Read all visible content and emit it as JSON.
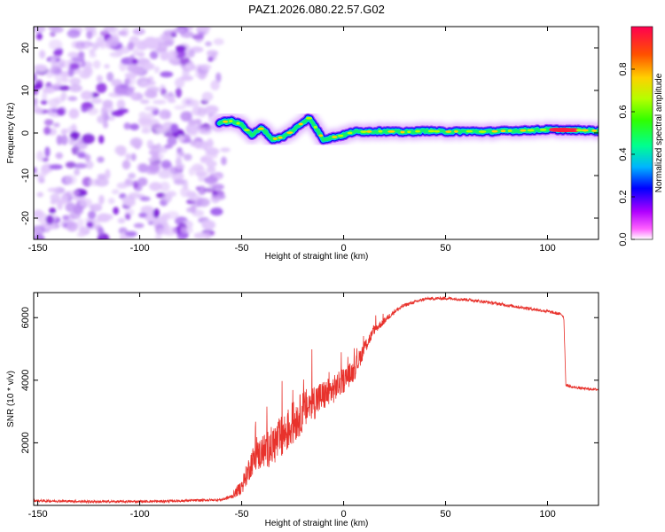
{
  "title": "PAZ1.2026.080.22.57.G02",
  "colors": {
    "snr_line": "#e8322c",
    "spectrogram_noise": "#8a2be2",
    "axis": "#000000"
  },
  "chart_data": [
    {
      "type": "heatmap",
      "name": "spectrogram",
      "xlabel": "Height of straight line (km)",
      "ylabel": "Frequency (Hz)",
      "xlim": [
        -152,
        125
      ],
      "ylim": [
        -25,
        25
      ],
      "xticks": [
        -150,
        -100,
        -50,
        0,
        50,
        100
      ],
      "yticks": [
        -20,
        -10,
        0,
        10,
        20
      ],
      "colorbar": {
        "label": "Normalized spectral amplitude",
        "range": [
          0,
          1
        ],
        "ticks": [
          "0.0",
          "0.2",
          "0.4",
          "0.6",
          "0.8"
        ],
        "colormap": [
          "#ffffff",
          "#ff00ff",
          "#8000ff",
          "#0000ff",
          "#00c8ff",
          "#00ff80",
          "#40ff00",
          "#c8ff00",
          "#ffd000",
          "#ff6000",
          "#ff0040"
        ]
      },
      "noise_region_x": [
        -152,
        -61
      ],
      "signal_track": {
        "height_km": [
          -61,
          -55,
          -50,
          -45,
          -40,
          -35,
          -30,
          -25,
          -20,
          -17,
          -14,
          -10,
          -5,
          0,
          5,
          10,
          20,
          30,
          40,
          50,
          60,
          70,
          80,
          90,
          100,
          110,
          120,
          125
        ],
        "frequency_hz": [
          2.5,
          2.8,
          2.0,
          -0.5,
          1.2,
          -1.5,
          -1.0,
          0.5,
          2.5,
          3.5,
          1.5,
          -1.5,
          -1.0,
          -0.5,
          0.3,
          0.3,
          0.4,
          0.2,
          0.5,
          0.3,
          0.4,
          0.3,
          0.5,
          0.6,
          0.8,
          0.7,
          0.6,
          0.5
        ],
        "peak_amplitude_note": "strongest (red) near 110 km"
      }
    },
    {
      "type": "line",
      "name": "snr",
      "xlabel": "Height of straight line (km)",
      "ylabel": "SNR (10 * v/v)",
      "xlim": [
        -152,
        125
      ],
      "ylim": [
        0,
        6800
      ],
      "xticks": [
        -150,
        -100,
        -50,
        0,
        50,
        100
      ],
      "yticks": [
        2000,
        4000,
        6000
      ],
      "series": [
        {
          "name": "SNR",
          "x": [
            -152,
            -120,
            -90,
            -60,
            -55,
            -50,
            -45,
            -40,
            -35,
            -30,
            -25,
            -20,
            -15,
            -10,
            -5,
            0,
            5,
            10,
            15,
            20,
            25,
            30,
            35,
            40,
            50,
            60,
            70,
            80,
            90,
            100,
            107,
            108,
            109,
            112,
            120,
            125
          ],
          "y": [
            150,
            120,
            130,
            180,
            280,
            600,
            1400,
            1700,
            1900,
            2200,
            2600,
            3000,
            3300,
            3500,
            3700,
            4000,
            4300,
            5000,
            5600,
            5900,
            6200,
            6400,
            6500,
            6600,
            6620,
            6580,
            6500,
            6400,
            6300,
            6200,
            6100,
            6000,
            3850,
            3780,
            3720,
            3700
          ],
          "noise_amplitude": [
            80,
            80,
            80,
            80,
            150,
            500,
            900,
            1100,
            1300,
            1400,
            1400,
            1300,
            1200,
            1000,
            900,
            800,
            700,
            500,
            300,
            200,
            150,
            120,
            100,
            100,
            100,
            100,
            100,
            100,
            100,
            100,
            100,
            100,
            100,
            80,
            80,
            80
          ]
        }
      ]
    }
  ]
}
